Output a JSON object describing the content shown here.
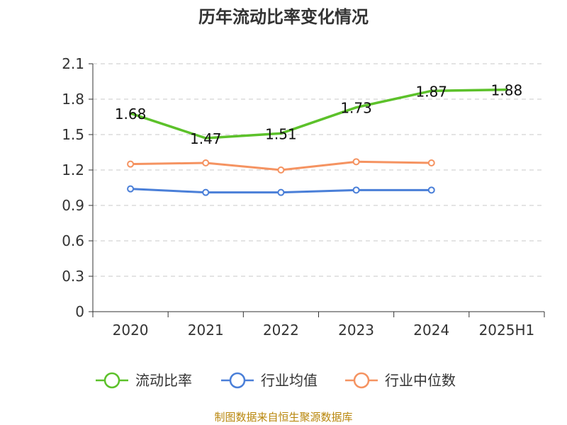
{
  "chart_data": {
    "type": "line",
    "title": "历年流动比率变化情况",
    "categories": [
      "2020",
      "2021",
      "2022",
      "2023",
      "2024",
      "2025H1"
    ],
    "ylim": [
      0,
      2.1
    ],
    "yticks": [
      "0",
      "0.3",
      "0.6",
      "0.9",
      "1.2",
      "1.5",
      "1.8",
      "2.1"
    ],
    "grid": true,
    "legend_position": "bottom",
    "series": [
      {
        "name": "流动比率",
        "color": "#5cc12a",
        "values": [
          1.68,
          1.47,
          1.51,
          1.73,
          1.87,
          1.88
        ],
        "labels": [
          "1.68",
          "1.47",
          "1.51",
          "1.73",
          "1.87",
          "1.88"
        ]
      },
      {
        "name": "行业均值",
        "color": "#4a7fd8",
        "values": [
          1.04,
          1.01,
          1.01,
          1.03,
          1.03,
          null
        ]
      },
      {
        "name": "行业中位数",
        "color": "#f59361",
        "values": [
          1.25,
          1.26,
          1.2,
          1.27,
          1.26,
          null
        ]
      }
    ]
  },
  "footer": "制图数据来自恒生聚源数据库"
}
